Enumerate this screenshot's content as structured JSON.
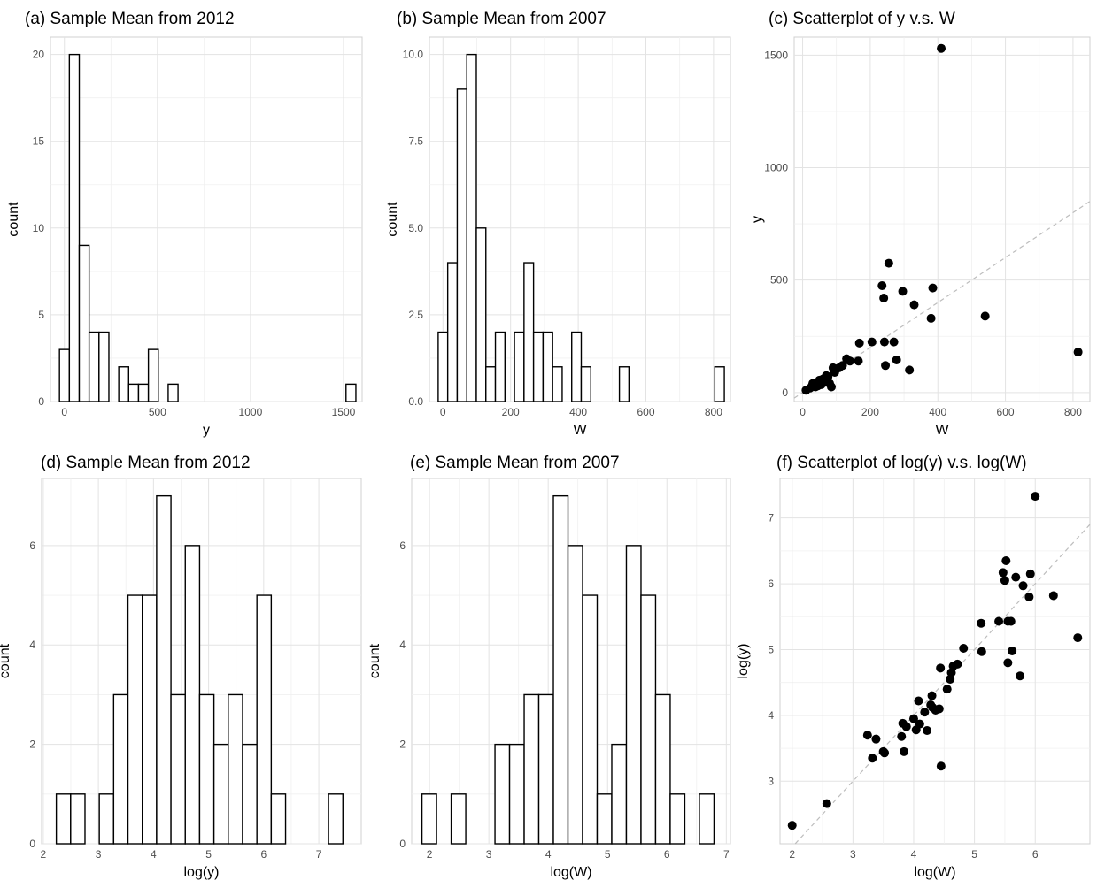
{
  "chart_data": [
    {
      "type": "bar",
      "subtype": "histogram",
      "title": "(a) Sample Mean from 2012",
      "xlabel": "y",
      "ylabel": "count",
      "xlim": [
        -75,
        1600
      ],
      "ylim": [
        0,
        21
      ],
      "xticks": [
        0,
        500,
        1000,
        1500
      ],
      "yticks": [
        0,
        5,
        10,
        15,
        20
      ],
      "ytick_labels": [
        "0",
        "5",
        "10",
        "15",
        "20"
      ],
      "grid": true,
      "bin_edges": [
        -26.55,
        26.55,
        79.65,
        132.75,
        185.85,
        238.95,
        292.05,
        345.15,
        398.25,
        451.35,
        504.45,
        557.55,
        610.65,
        663.75,
        716.85,
        769.95,
        823.05,
        876.15,
        929.25,
        982.35,
        1035.45,
        1088.55,
        1141.65,
        1194.75,
        1247.85,
        1300.95,
        1354.05,
        1407.15,
        1460.25,
        1513.35,
        1566.45
      ],
      "counts": [
        3,
        20,
        9,
        4,
        4,
        0,
        2,
        1,
        1,
        3,
        0,
        1,
        0,
        0,
        0,
        0,
        0,
        0,
        0,
        0,
        0,
        0,
        0,
        0,
        0,
        0,
        0,
        0,
        0,
        1
      ]
    },
    {
      "type": "bar",
      "subtype": "histogram",
      "title": "(b) Sample Mean from 2007",
      "xlabel": "W",
      "ylabel": "count",
      "xlim": [
        -40,
        850
      ],
      "ylim": [
        0,
        10.5
      ],
      "xticks": [
        0,
        200,
        400,
        600,
        800
      ],
      "yticks": [
        0,
        2.5,
        5,
        7.5,
        10
      ],
      "ytick_labels": [
        "0.0",
        "2.5",
        "5.0",
        "7.5",
        "10.0"
      ],
      "grid": true,
      "bin_edges": [
        -14.1,
        14.1,
        42.3,
        70.5,
        98.7,
        126.9,
        155.1,
        183.3,
        211.5,
        239.7,
        267.9,
        296.1,
        324.3,
        352.5,
        380.7,
        408.9,
        437.1,
        465.3,
        493.5,
        521.7,
        549.9,
        578.1,
        606.3,
        634.5,
        662.7,
        690.9,
        719.1,
        747.3,
        775.5,
        803.7,
        831.9
      ],
      "counts": [
        2,
        4,
        9,
        10,
        5,
        1,
        2,
        0,
        2,
        4,
        2,
        2,
        1,
        0,
        2,
        1,
        0,
        0,
        0,
        1,
        0,
        0,
        0,
        0,
        0,
        0,
        0,
        0,
        0,
        1
      ]
    },
    {
      "type": "scatter",
      "title": "(c) Scatterplot of y v.s. W",
      "xlabel": "W",
      "ylabel": "y",
      "xlim": [
        -25,
        850
      ],
      "ylim": [
        -40,
        1580
      ],
      "xticks": [
        0,
        200,
        400,
        600,
        800
      ],
      "yticks": [
        0,
        500,
        1000,
        1500
      ],
      "grid": true,
      "reference_line": "y = x",
      "x": [
        10,
        22,
        30,
        38,
        45,
        50,
        55,
        60,
        65,
        70,
        75,
        80,
        85,
        90,
        95,
        100,
        108,
        118,
        130,
        140,
        165,
        168,
        205,
        235,
        240,
        242,
        245,
        255,
        270,
        278,
        296,
        316,
        330,
        380,
        385,
        410,
        540,
        815
      ],
      "y": [
        10,
        20,
        40,
        25,
        30,
        55,
        35,
        60,
        45,
        75,
        70,
        40,
        25,
        110,
        90,
        105,
        110,
        120,
        150,
        140,
        140,
        220,
        225,
        475,
        420,
        225,
        120,
        575,
        225,
        145,
        450,
        100,
        390,
        330,
        465,
        1530,
        340,
        180
      ]
    },
    {
      "type": "bar",
      "subtype": "histogram",
      "title": "(d) Sample Mean from 2012",
      "xlabel": "log(y)",
      "ylabel": "count",
      "xlim": [
        1.97,
        7.77
      ],
      "ylim": [
        0,
        7.35
      ],
      "xticks": [
        2,
        3,
        4,
        5,
        6,
        7
      ],
      "yticks": [
        0,
        2,
        4,
        6
      ],
      "ytick_labels": [
        "0",
        "2",
        "4",
        "6"
      ],
      "grid": true,
      "bin_edges": [
        2.237,
        2.497,
        2.757,
        3.017,
        3.277,
        3.537,
        3.797,
        4.057,
        4.317,
        4.577,
        4.837,
        5.097,
        5.357,
        5.617,
        5.877,
        6.137,
        6.397,
        6.657,
        6.917,
        7.177,
        7.437
      ],
      "counts": [
        1,
        1,
        0,
        1,
        3,
        5,
        5,
        7,
        3,
        6,
        3,
        2,
        3,
        2,
        5,
        1,
        0,
        0,
        0,
        1
      ]
    },
    {
      "type": "bar",
      "subtype": "histogram",
      "title": "(e) Sample Mean from 2007",
      "xlabel": "log(W)",
      "ylabel": "count",
      "xlim": [
        1.7,
        7.07
      ],
      "ylim": [
        0,
        7.35
      ],
      "xticks": [
        2,
        3,
        4,
        5,
        6,
        7
      ],
      "yticks": [
        0,
        2,
        4,
        6
      ],
      "ytick_labels": [
        "0",
        "2",
        "4",
        "6"
      ],
      "grid": true,
      "bin_edges": [
        1.873,
        2.119,
        2.365,
        2.611,
        2.857,
        3.103,
        3.349,
        3.595,
        3.841,
        4.087,
        4.333,
        4.579,
        4.825,
        5.071,
        5.317,
        5.563,
        5.809,
        6.055,
        6.301,
        6.547,
        6.793
      ],
      "counts": [
        1,
        0,
        1,
        0,
        0,
        2,
        2,
        3,
        3,
        7,
        6,
        5,
        1,
        2,
        6,
        5,
        3,
        1,
        0,
        1
      ]
    },
    {
      "type": "scatter",
      "title": "(f) Scatterplot of log(y) v.s. log(W)",
      "xlabel": "log(W)",
      "ylabel": "log(y)",
      "xlim": [
        1.8,
        6.9
      ],
      "ylim": [
        2.05,
        7.6
      ],
      "xticks": [
        2,
        3,
        4,
        5,
        6
      ],
      "yticks": [
        3,
        4,
        5,
        6,
        7
      ],
      "grid": true,
      "reference_line": "y = x",
      "x": [
        2.0,
        2.57,
        3.24,
        3.32,
        3.38,
        3.5,
        3.52,
        3.8,
        3.82,
        3.84,
        3.88,
        4.0,
        4.04,
        4.08,
        4.1,
        4.18,
        4.22,
        4.28,
        4.3,
        4.31,
        4.36,
        4.42,
        4.44,
        4.45,
        4.55,
        4.6,
        4.62,
        4.65,
        4.72,
        4.82,
        5.11,
        5.12,
        5.4,
        5.47,
        5.5,
        5.52,
        5.55,
        5.55,
        5.6,
        5.62,
        5.68,
        5.75,
        5.8,
        5.9,
        5.92,
        6.0,
        6.3,
        6.7
      ],
      "y": [
        2.33,
        2.66,
        3.7,
        3.35,
        3.64,
        3.45,
        3.43,
        3.68,
        3.88,
        3.45,
        3.83,
        3.95,
        3.78,
        4.22,
        3.87,
        4.05,
        3.77,
        4.16,
        4.3,
        4.12,
        4.08,
        4.1,
        4.72,
        3.23,
        4.4,
        4.55,
        4.65,
        4.75,
        4.78,
        5.02,
        5.4,
        4.97,
        5.43,
        6.17,
        6.05,
        6.35,
        4.8,
        5.43,
        5.43,
        4.98,
        6.1,
        4.6,
        5.97,
        5.8,
        6.15,
        7.33,
        5.82,
        5.18
      ]
    }
  ]
}
